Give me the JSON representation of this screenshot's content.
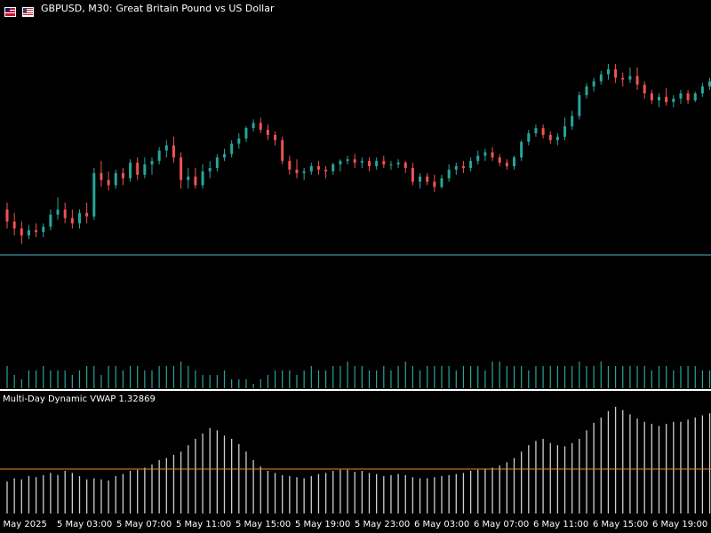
{
  "window": {
    "symbol": "GBPUSD, M30:",
    "description": "Great Britain Pound vs US Dollar",
    "icons": [
      "flag-uk-icon",
      "flag-us-icon"
    ]
  },
  "indicator": {
    "label": "Multi-Day Dynamic VWAP 1.32869"
  },
  "colors": {
    "background": "#000000",
    "bull": "#26a69a",
    "bear": "#ef5350",
    "price_line": "#4fb0c6",
    "volume": "#26a69a",
    "vwap_bars": "#cfcfcf",
    "vwap_level": "#e8892b"
  },
  "time_axis": {
    "labels": [
      "2 May 2025",
      "5 May 03:00",
      "5 May 07:00",
      "5 May 11:00",
      "5 May 15:00",
      "5 May 19:00",
      "5 May 23:00",
      "6 May 03:00",
      "6 May 07:00",
      "6 May 11:00",
      "6 May 15:00",
      "6 May 19:00"
    ]
  },
  "chart_data": {
    "type": "candlestick",
    "candles": [
      [
        0.56,
        0.6,
        0.45,
        0.49
      ],
      [
        0.49,
        0.54,
        0.41,
        0.45
      ],
      [
        0.45,
        0.49,
        0.36,
        0.41
      ],
      [
        0.41,
        0.47,
        0.39,
        0.44
      ],
      [
        0.44,
        0.48,
        0.4,
        0.43
      ],
      [
        0.43,
        0.48,
        0.4,
        0.46
      ],
      [
        0.46,
        0.56,
        0.44,
        0.53
      ],
      [
        0.53,
        0.63,
        0.5,
        0.56
      ],
      [
        0.56,
        0.6,
        0.48,
        0.51
      ],
      [
        0.51,
        0.56,
        0.45,
        0.48
      ],
      [
        0.48,
        0.56,
        0.45,
        0.54
      ],
      [
        0.54,
        0.6,
        0.48,
        0.52
      ],
      [
        0.52,
        0.8,
        0.5,
        0.77
      ],
      [
        0.77,
        0.84,
        0.69,
        0.73
      ],
      [
        0.73,
        0.78,
        0.67,
        0.7
      ],
      [
        0.7,
        0.79,
        0.68,
        0.77
      ],
      [
        0.77,
        0.8,
        0.7,
        0.74
      ],
      [
        0.74,
        0.85,
        0.72,
        0.83
      ],
      [
        0.83,
        0.86,
        0.73,
        0.76
      ],
      [
        0.76,
        0.86,
        0.74,
        0.82
      ],
      [
        0.82,
        0.86,
        0.76,
        0.84
      ],
      [
        0.84,
        0.92,
        0.82,
        0.9
      ],
      [
        0.9,
        0.96,
        0.86,
        0.93
      ],
      [
        0.93,
        0.98,
        0.83,
        0.86
      ],
      [
        0.86,
        0.89,
        0.68,
        0.73
      ],
      [
        0.73,
        0.8,
        0.68,
        0.75
      ],
      [
        0.75,
        0.8,
        0.68,
        0.7
      ],
      [
        0.7,
        0.82,
        0.68,
        0.78
      ],
      [
        0.78,
        0.84,
        0.74,
        0.8
      ],
      [
        0.8,
        0.88,
        0.78,
        0.86
      ],
      [
        0.86,
        0.91,
        0.84,
        0.88
      ],
      [
        0.88,
        0.96,
        0.86,
        0.94
      ],
      [
        0.94,
        1.0,
        0.91,
        0.97
      ],
      [
        0.97,
        1.04,
        0.95,
        1.03
      ],
      [
        1.03,
        1.08,
        1.01,
        1.06
      ],
      [
        1.06,
        1.09,
        1.0,
        1.02
      ],
      [
        1.02,
        1.05,
        0.96,
        0.99
      ],
      [
        0.99,
        1.01,
        0.93,
        0.96
      ],
      [
        0.96,
        0.98,
        0.82,
        0.84
      ],
      [
        0.84,
        0.87,
        0.76,
        0.79
      ],
      [
        0.79,
        0.85,
        0.74,
        0.77
      ],
      [
        0.77,
        0.8,
        0.73,
        0.78
      ],
      [
        0.78,
        0.83,
        0.76,
        0.81
      ],
      [
        0.81,
        0.84,
        0.76,
        0.79
      ],
      [
        0.79,
        0.81,
        0.74,
        0.78
      ],
      [
        0.78,
        0.83,
        0.76,
        0.82
      ],
      [
        0.82,
        0.85,
        0.78,
        0.84
      ],
      [
        0.84,
        0.87,
        0.82,
        0.85
      ],
      [
        0.85,
        0.88,
        0.8,
        0.83
      ],
      [
        0.83,
        0.86,
        0.8,
        0.84
      ],
      [
        0.84,
        0.86,
        0.78,
        0.81
      ],
      [
        0.81,
        0.86,
        0.79,
        0.84
      ],
      [
        0.84,
        0.87,
        0.8,
        0.82
      ],
      [
        0.82,
        0.84,
        0.79,
        0.82
      ],
      [
        0.82,
        0.85,
        0.8,
        0.83
      ],
      [
        0.83,
        0.84,
        0.77,
        0.8
      ],
      [
        0.8,
        0.83,
        0.7,
        0.72
      ],
      [
        0.72,
        0.77,
        0.68,
        0.75
      ],
      [
        0.75,
        0.77,
        0.7,
        0.72
      ],
      [
        0.72,
        0.76,
        0.66,
        0.69
      ],
      [
        0.69,
        0.76,
        0.68,
        0.74
      ],
      [
        0.74,
        0.82,
        0.72,
        0.79
      ],
      [
        0.79,
        0.83,
        0.76,
        0.81
      ],
      [
        0.81,
        0.84,
        0.77,
        0.8
      ],
      [
        0.8,
        0.86,
        0.78,
        0.84
      ],
      [
        0.84,
        0.9,
        0.82,
        0.87
      ],
      [
        0.87,
        0.91,
        0.84,
        0.89
      ],
      [
        0.89,
        0.92,
        0.84,
        0.86
      ],
      [
        0.86,
        0.88,
        0.81,
        0.83
      ],
      [
        0.83,
        0.85,
        0.79,
        0.81
      ],
      [
        0.81,
        0.87,
        0.79,
        0.86
      ],
      [
        0.86,
        0.96,
        0.84,
        0.95
      ],
      [
        0.95,
        1.02,
        0.93,
        1.0
      ],
      [
        1.0,
        1.05,
        0.98,
        1.03
      ],
      [
        1.03,
        1.05,
        0.97,
        0.99
      ],
      [
        0.99,
        1.01,
        0.94,
        0.96
      ],
      [
        0.96,
        1.0,
        0.93,
        0.98
      ],
      [
        0.98,
        1.09,
        0.96,
        1.04
      ],
      [
        1.04,
        1.13,
        1.02,
        1.1
      ],
      [
        1.1,
        1.24,
        1.08,
        1.22
      ],
      [
        1.22,
        1.29,
        1.2,
        1.27
      ],
      [
        1.27,
        1.32,
        1.24,
        1.3
      ],
      [
        1.3,
        1.36,
        1.28,
        1.34
      ],
      [
        1.34,
        1.4,
        1.31,
        1.37
      ],
      [
        1.37,
        1.4,
        1.29,
        1.32
      ],
      [
        1.32,
        1.35,
        1.27,
        1.31
      ],
      [
        1.31,
        1.38,
        1.29,
        1.33
      ],
      [
        1.33,
        1.38,
        1.25,
        1.28
      ],
      [
        1.28,
        1.3,
        1.2,
        1.23
      ],
      [
        1.23,
        1.25,
        1.17,
        1.19
      ],
      [
        1.19,
        1.23,
        1.15,
        1.21
      ],
      [
        1.21,
        1.26,
        1.16,
        1.18
      ],
      [
        1.18,
        1.22,
        1.15,
        1.2
      ],
      [
        1.2,
        1.25,
        1.17,
        1.23
      ],
      [
        1.23,
        1.25,
        1.17,
        1.19
      ],
      [
        1.19,
        1.24,
        1.18,
        1.23
      ],
      [
        1.23,
        1.29,
        1.21,
        1.27
      ],
      [
        1.27,
        1.32,
        1.25,
        1.3
      ],
      [
        1.3,
        1.34,
        1.28,
        1.29
      ]
    ],
    "volumes": [
      5,
      3,
      2,
      4,
      4,
      5,
      4,
      4,
      4,
      3,
      4,
      5,
      5,
      3,
      5,
      5,
      4,
      5,
      5,
      4,
      4,
      5,
      5,
      5,
      6,
      5,
      4,
      3,
      3,
      3,
      4,
      2,
      2,
      2,
      1,
      2,
      3,
      4,
      4,
      4,
      3,
      4,
      5,
      4,
      4,
      5,
      5,
      6,
      5,
      5,
      4,
      4,
      5,
      4,
      5,
      6,
      5,
      4,
      5,
      5,
      5,
      5,
      4,
      5,
      5,
      5,
      4,
      6,
      6,
      5,
      5,
      5,
      4,
      5,
      5,
      5,
      5,
      5,
      5,
      6,
      5,
      5,
      6,
      5,
      5,
      5,
      5,
      5,
      5,
      4,
      5,
      5,
      4,
      5,
      5,
      5,
      4,
      4,
      4
    ],
    "vwap": [
      0.3,
      0.33,
      0.32,
      0.35,
      0.34,
      0.36,
      0.38,
      0.36,
      0.4,
      0.38,
      0.35,
      0.32,
      0.33,
      0.32,
      0.31,
      0.35,
      0.37,
      0.4,
      0.41,
      0.43,
      0.46,
      0.5,
      0.52,
      0.55,
      0.58,
      0.64,
      0.7,
      0.75,
      0.8,
      0.78,
      0.73,
      0.7,
      0.65,
      0.58,
      0.5,
      0.44,
      0.4,
      0.38,
      0.36,
      0.35,
      0.34,
      0.33,
      0.35,
      0.37,
      0.38,
      0.4,
      0.41,
      0.41,
      0.39,
      0.4,
      0.38,
      0.37,
      0.35,
      0.36,
      0.37,
      0.36,
      0.34,
      0.33,
      0.33,
      0.34,
      0.35,
      0.36,
      0.37,
      0.38,
      0.4,
      0.41,
      0.42,
      0.43,
      0.45,
      0.48,
      0.52,
      0.58,
      0.64,
      0.68,
      0.7,
      0.66,
      0.64,
      0.63,
      0.66,
      0.7,
      0.78,
      0.85,
      0.9,
      0.96,
      1.0,
      0.97,
      0.93,
      0.89,
      0.86,
      0.84,
      0.82,
      0.84,
      0.86,
      0.86,
      0.88,
      0.9,
      0.92,
      0.94,
      0.96
    ]
  }
}
